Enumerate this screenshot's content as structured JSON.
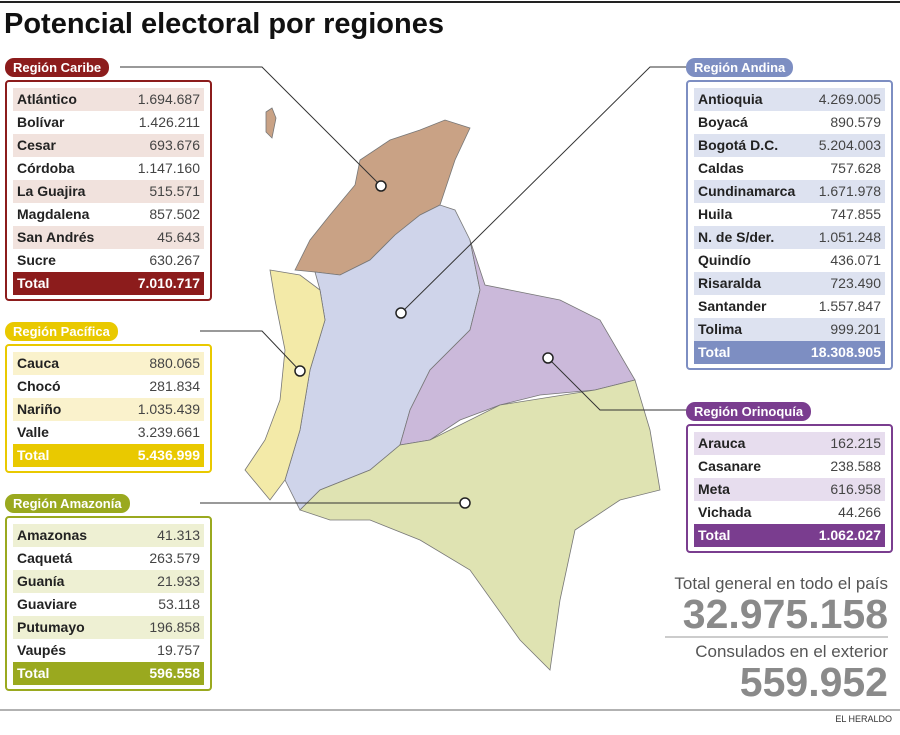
{
  "header": {
    "title": "Potencial electoral por regiones"
  },
  "regions": [
    {
      "name": "Región Caribe",
      "rows": [
        [
          "Atlántico",
          "1.694.687"
        ],
        [
          "Bolívar",
          "1.426.211"
        ],
        [
          "Cesar",
          "693.676"
        ],
        [
          "Córdoba",
          "1.147.160"
        ],
        [
          "La Guajira",
          "515.571"
        ],
        [
          "Magdalena",
          "857.502"
        ],
        [
          "San Andrés",
          "45.643"
        ],
        [
          "Sucre",
          "630.267"
        ]
      ],
      "total": [
        "Total",
        "7.010.717"
      ]
    },
    {
      "name": "Región Pacífica",
      "rows": [
        [
          "Cauca",
          "880.065"
        ],
        [
          "Chocó",
          "281.834"
        ],
        [
          "Nariño",
          "1.035.439"
        ],
        [
          "Valle",
          "3.239.661"
        ]
      ],
      "total": [
        "Total",
        "5.436.999"
      ]
    },
    {
      "name": "Región Amazonía",
      "rows": [
        [
          "Amazonas",
          "41.313"
        ],
        [
          "Caquetá",
          "263.579"
        ],
        [
          "Guanía",
          "21.933"
        ],
        [
          "Guaviare",
          "53.118"
        ],
        [
          "Putumayo",
          "196.858"
        ],
        [
          "Vaupés",
          "19.757"
        ]
      ],
      "total": [
        "Total",
        "596.558"
      ]
    },
    {
      "name": "Región Andina",
      "rows": [
        [
          "Antioquia",
          "4.269.005"
        ],
        [
          "Boyacá",
          "890.579"
        ],
        [
          "Bogotá D.C.",
          "5.204.003"
        ],
        [
          "Caldas",
          "757.628"
        ],
        [
          "Cundinamarca",
          "1.671.978"
        ],
        [
          "Huila",
          "747.855"
        ],
        [
          "N. de S/der.",
          "1.051.248"
        ],
        [
          "Quindío",
          "436.071"
        ],
        [
          "Risaralda",
          "723.490"
        ],
        [
          "Santander",
          "1.557.847"
        ],
        [
          "Tolima",
          "999.201"
        ]
      ],
      "total": [
        "Total",
        "18.308.905"
      ]
    },
    {
      "name": "Región Orinoquía",
      "rows": [
        [
          "Arauca",
          "162.215"
        ],
        [
          "Casanare",
          "238.588"
        ],
        [
          "Meta",
          "616.958"
        ],
        [
          "Vichada",
          "44.266"
        ]
      ],
      "total": [
        "Total",
        "1.062.027"
      ]
    }
  ],
  "summary": {
    "general_label": "Total general en todo el país",
    "general_value": "32.975.158",
    "abroad_label": "Consulados en el exterior",
    "abroad_value": "559.952"
  },
  "footer": {
    "source": "EL HERALDO"
  }
}
